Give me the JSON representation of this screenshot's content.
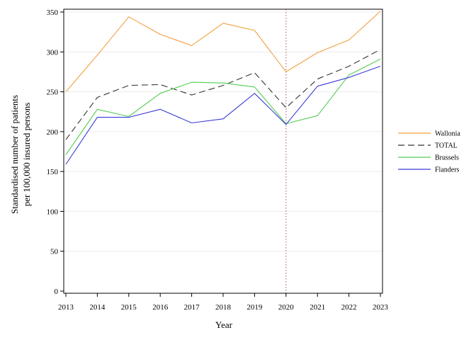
{
  "chart_data": {
    "type": "line",
    "xlabel": "Year",
    "ylabel": [
      "Standardised number of patients",
      "per 100,000 insured persons"
    ],
    "ylim": [
      0,
      350
    ],
    "yticks": [
      0,
      50,
      100,
      150,
      200,
      250,
      300,
      350
    ],
    "x": [
      2013,
      2014,
      2015,
      2016,
      2017,
      2018,
      2019,
      2020,
      2021,
      2022,
      2023
    ],
    "grid": "horizontal",
    "legend_position": "right",
    "reference_line": {
      "x": 2020,
      "style": "dotted",
      "color": "#b07080"
    },
    "series": [
      {
        "name": "Wallonia",
        "color": "#f0a040",
        "dash": "",
        "values": [
          250,
          296,
          344,
          322,
          308,
          336,
          327,
          275,
          299,
          315,
          351
        ]
      },
      {
        "name": "TOTAL",
        "color": "#333333",
        "dash": "9,5",
        "values": [
          190,
          243,
          258,
          259,
          246,
          258,
          274,
          230,
          266,
          282,
          303
        ]
      },
      {
        "name": "Brussels",
        "color": "#55cc55",
        "dash": "",
        "values": [
          171,
          228,
          219,
          248,
          262,
          261,
          256,
          210,
          220,
          271,
          291
        ]
      },
      {
        "name": "Flanders",
        "color": "#3a3ad8",
        "dash": "",
        "values": [
          159,
          218,
          218,
          228,
          211,
          216,
          248,
          209,
          257,
          268,
          282
        ]
      }
    ]
  }
}
